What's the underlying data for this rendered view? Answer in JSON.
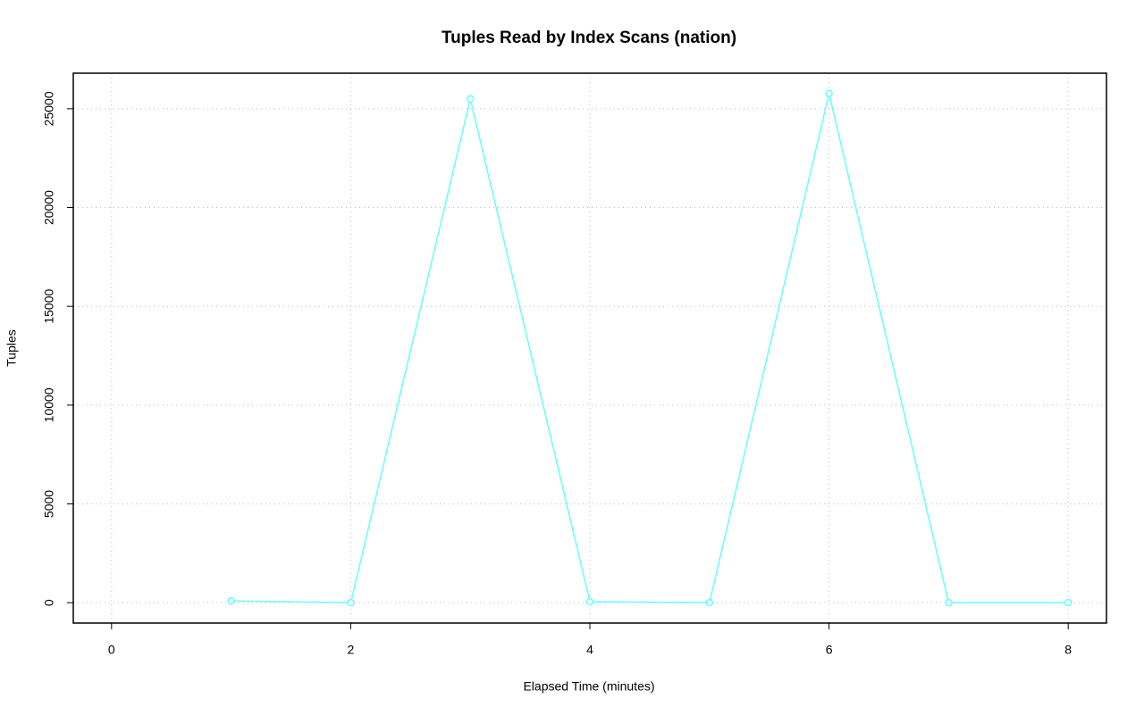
{
  "chart_data": {
    "type": "line",
    "title": "Tuples Read by Index Scans (nation)",
    "x_label": "Elapsed Time (minutes)",
    "y_label": "Tuples",
    "x": [
      1,
      2,
      3,
      4,
      5,
      6,
      7,
      8
    ],
    "series": [
      {
        "name": "nation",
        "color": "#66ffff",
        "values": [
          90,
          0,
          25500,
          50,
          0,
          25770,
          0,
          0
        ]
      }
    ],
    "xlim": [
      -0.32,
      8.32
    ],
    "xticks": [
      0,
      2,
      4,
      6,
      8
    ],
    "ylim": [
      -1031,
      26801
    ],
    "yticks": [
      0,
      5000,
      10000,
      15000,
      20000,
      25000
    ],
    "grid": true
  }
}
